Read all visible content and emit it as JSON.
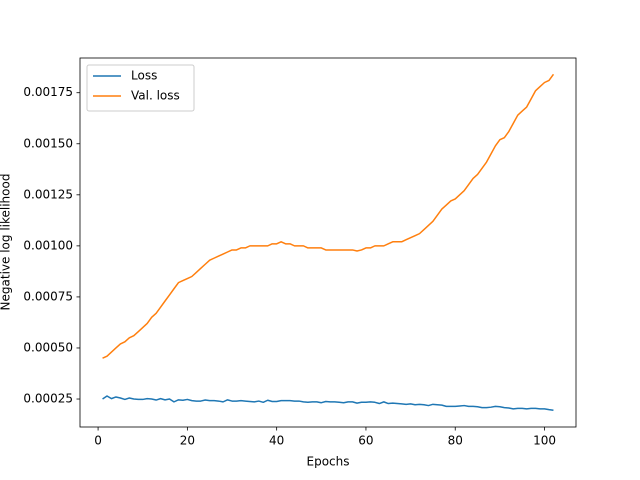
{
  "chart_data": {
    "type": "line",
    "x_label": "Epochs",
    "y_label": "Negative log likelihood",
    "x": [
      1,
      2,
      3,
      4,
      5,
      6,
      7,
      8,
      9,
      10,
      11,
      12,
      13,
      14,
      15,
      16,
      17,
      18,
      19,
      20,
      21,
      22,
      23,
      24,
      25,
      26,
      27,
      28,
      29,
      30,
      31,
      32,
      33,
      34,
      35,
      36,
      37,
      38,
      39,
      40,
      41,
      42,
      43,
      44,
      45,
      46,
      47,
      48,
      49,
      50,
      51,
      52,
      53,
      54,
      55,
      56,
      57,
      58,
      59,
      60,
      61,
      62,
      63,
      64,
      65,
      66,
      67,
      68,
      69,
      70,
      71,
      72,
      73,
      74,
      75,
      76,
      77,
      78,
      79,
      80,
      81,
      82,
      83,
      84,
      85,
      86,
      87,
      88,
      89,
      90,
      91,
      92,
      93,
      94,
      95,
      96,
      97,
      98,
      99,
      100,
      101,
      102
    ],
    "series": [
      {
        "name": "Loss",
        "color": "#1f77b4",
        "values": [
          0.00025,
          0.000265,
          0.000252,
          0.00026,
          0.000255,
          0.000248,
          0.000255,
          0.00025,
          0.000248,
          0.000248,
          0.000252,
          0.00025,
          0.000245,
          0.000252,
          0.000246,
          0.00025,
          0.000236,
          0.000246,
          0.000244,
          0.000248,
          0.000242,
          0.00024,
          0.00024,
          0.000245,
          0.000242,
          0.000242,
          0.00024,
          0.000236,
          0.000246,
          0.00024,
          0.00024,
          0.000242,
          0.00024,
          0.000238,
          0.000236,
          0.00024,
          0.000234,
          0.000244,
          0.000238,
          0.000238,
          0.000242,
          0.000242,
          0.000242,
          0.00024,
          0.00024,
          0.000236,
          0.000234,
          0.000236,
          0.000236,
          0.000232,
          0.000238,
          0.000236,
          0.000236,
          0.000234,
          0.000232,
          0.000236,
          0.000236,
          0.00023,
          0.000234,
          0.000234,
          0.000236,
          0.000234,
          0.000228,
          0.000236,
          0.000228,
          0.00023,
          0.000228,
          0.000226,
          0.000224,
          0.000226,
          0.000222,
          0.000224,
          0.000222,
          0.000218,
          0.000224,
          0.000222,
          0.00022,
          0.000214,
          0.000214,
          0.000214,
          0.000216,
          0.000218,
          0.000214,
          0.000214,
          0.000212,
          0.000208,
          0.000208,
          0.00021,
          0.000214,
          0.000212,
          0.000208,
          0.000206,
          0.000202,
          0.000204,
          0.000204,
          0.000202,
          0.000204,
          0.000204,
          0.000202,
          0.000202,
          0.000198,
          0.000195
        ]
      },
      {
        "name": "Val. loss",
        "color": "#ff7f0e",
        "values": [
          0.00045,
          0.00046,
          0.00048,
          0.0005,
          0.00052,
          0.00053,
          0.00055,
          0.00056,
          0.00058,
          0.0006,
          0.00062,
          0.00065,
          0.00067,
          0.0007,
          0.00073,
          0.00076,
          0.00079,
          0.00082,
          0.00083,
          0.00084,
          0.00085,
          0.00087,
          0.00089,
          0.00091,
          0.00093,
          0.00094,
          0.00095,
          0.00096,
          0.00097,
          0.00098,
          0.00098,
          0.00099,
          0.00099,
          0.001,
          0.001,
          0.001,
          0.001,
          0.001,
          0.00101,
          0.00101,
          0.00102,
          0.00101,
          0.00101,
          0.001,
          0.001,
          0.001,
          0.00099,
          0.00099,
          0.00099,
          0.00099,
          0.00098,
          0.00098,
          0.00098,
          0.00098,
          0.00098,
          0.00098,
          0.00098,
          0.000975,
          0.00098,
          0.00099,
          0.00099,
          0.001,
          0.001,
          0.001,
          0.00101,
          0.00102,
          0.00102,
          0.00102,
          0.00103,
          0.00104,
          0.00105,
          0.00106,
          0.00108,
          0.0011,
          0.00112,
          0.00115,
          0.00118,
          0.0012,
          0.00122,
          0.00123,
          0.00125,
          0.00127,
          0.0013,
          0.00133,
          0.00135,
          0.00138,
          0.00141,
          0.00145,
          0.00149,
          0.00152,
          0.00153,
          0.00156,
          0.0016,
          0.00164,
          0.00166,
          0.00168,
          0.00172,
          0.00176,
          0.00178,
          0.0018,
          0.00181,
          0.00184
        ]
      }
    ],
    "xlim": [
      -4.05,
      107.05
    ],
    "xticks": [
      0,
      20,
      40,
      60,
      80,
      100
    ],
    "ylim": [
      0.000113,
      0.00192
    ],
    "yticks": [
      0.00025,
      {
        "value": 0.0005,
        "label": "0.00050"
      },
      0.00075,
      {
        "value": 0.001,
        "label": "0.00100"
      },
      0.00125,
      {
        "value": 0.0015,
        "label": "0.00150"
      },
      0.00175
    ],
    "legend": "upper left",
    "grid": false
  }
}
